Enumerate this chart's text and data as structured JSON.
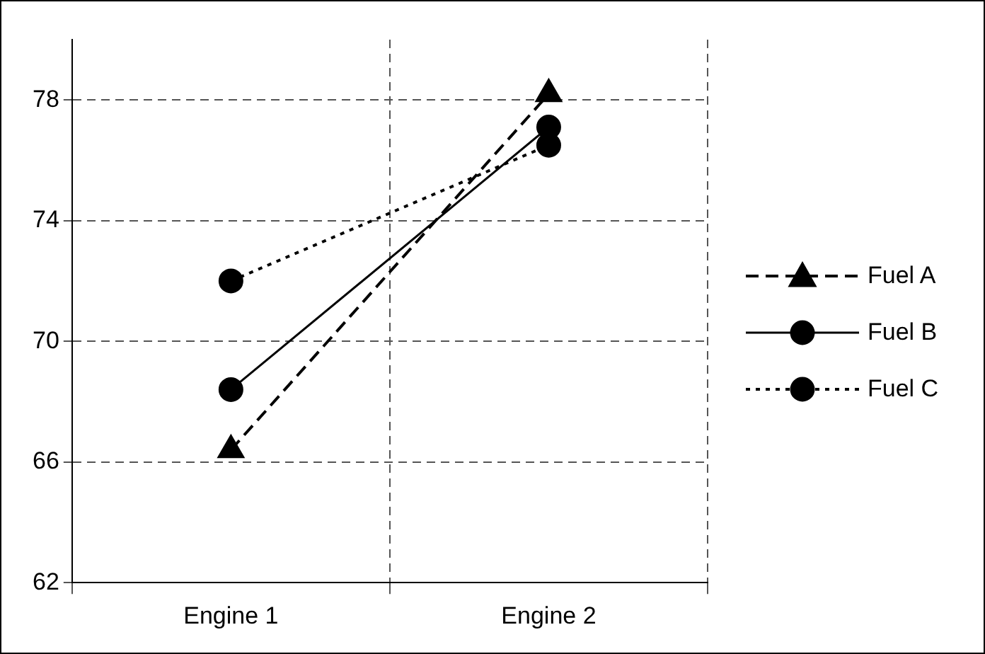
{
  "chart_data": {
    "type": "line",
    "categories": [
      "Engine 1",
      "Engine 2"
    ],
    "series": [
      {
        "name": "Fuel A",
        "color": "#000000",
        "values": [
          66.4,
          78.2
        ],
        "marker": "triangle",
        "line_style": "dashed"
      },
      {
        "name": "Fuel B",
        "color": "#000000",
        "values": [
          68.4,
          77.1
        ],
        "marker": "circle",
        "line_style": "solid"
      },
      {
        "name": "Fuel C",
        "color": "#000000",
        "values": [
          72.0,
          76.5
        ],
        "marker": "circle",
        "line_style": "dotted"
      }
    ],
    "ylim": [
      62,
      80
    ],
    "yticks": [
      62,
      66,
      70,
      74,
      78
    ],
    "grid": true,
    "legend": "right"
  }
}
